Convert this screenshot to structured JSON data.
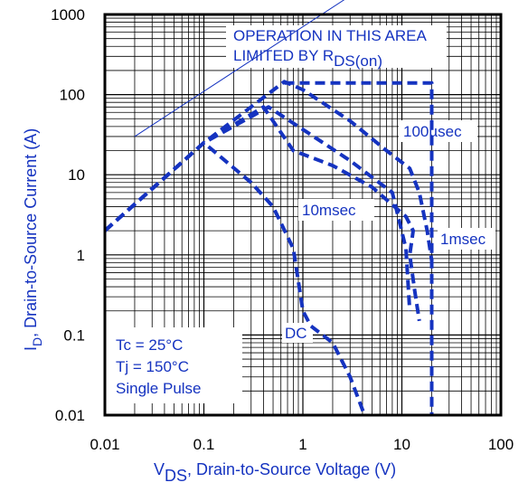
{
  "chart_data": {
    "type": "line",
    "xscale": "log",
    "yscale": "log",
    "xlim": [
      0.01,
      100
    ],
    "ylim": [
      0.01,
      1000
    ],
    "grid": true,
    "x_ticks": [
      "0.01",
      "0.1",
      "1",
      "10",
      "100"
    ],
    "y_ticks": [
      "0.01",
      "0.1",
      "1",
      "10",
      "100",
      "1000"
    ],
    "xlabel": {
      "main": "V",
      "sub": "DS",
      "rest": ", Drain-to-Source Voltage (V)"
    },
    "ylabel": {
      "main": "I",
      "sub": "D",
      "rest": ",  Drain-to-Source Current (A)"
    },
    "annotation": {
      "line1": "OPERATION IN THIS AREA",
      "line2_main": "LIMITED BY R",
      "line2_sub": "DS(on)"
    },
    "conditions": [
      "Tc = 25°C",
      "Tj = 150°C",
      "Single Pulse"
    ],
    "colors": {
      "curve": "#1533c0",
      "grid": "#000000",
      "text": "#1533c0"
    },
    "limit_line": [
      [
        0.02,
        30
      ],
      [
        0.08,
        150
      ]
    ],
    "series": [
      {
        "name": "100µsec",
        "points": [
          [
            0.01,
            2
          ],
          [
            0.1,
            25
          ],
          [
            0.65,
            145
          ],
          [
            1.0,
            115
          ],
          [
            3,
            47
          ],
          [
            7,
            20
          ],
          [
            12,
            12
          ],
          [
            15,
            6
          ],
          [
            18,
            2
          ],
          [
            20,
            0.85
          ]
        ]
      },
      {
        "name": "1msec",
        "points": [
          [
            0.01,
            2
          ],
          [
            0.1,
            25
          ],
          [
            0.4,
            70
          ],
          [
            0.8,
            20
          ],
          [
            2,
            13
          ],
          [
            5,
            7
          ],
          [
            11,
            3
          ],
          [
            13,
            2
          ],
          [
            12,
            1
          ],
          [
            13.5,
            0.35
          ],
          [
            15,
            0.15
          ]
        ]
      },
      {
        "name": "10msec",
        "points": [
          [
            0.01,
            2
          ],
          [
            0.1,
            25
          ],
          [
            0.45,
            70
          ],
          [
            1.1,
            34
          ],
          [
            3,
            15
          ],
          [
            8,
            6
          ],
          [
            11,
            1.2
          ],
          [
            12,
            0.2
          ]
        ]
      },
      {
        "name": "DC",
        "points": [
          [
            0.01,
            2
          ],
          [
            0.1,
            25
          ],
          [
            0.3,
            8
          ],
          [
            0.5,
            4
          ],
          [
            0.8,
            1.2
          ],
          [
            1.0,
            0.2
          ],
          [
            1.2,
            0.13
          ],
          [
            2,
            0.08
          ],
          [
            3,
            0.03
          ],
          [
            4.2,
            0.01
          ]
        ]
      },
      {
        "name": "",
        "points": [
          [
            0.65,
            140
          ],
          [
            20,
            140
          ],
          [
            20,
            0.01
          ]
        ]
      }
    ],
    "curve_labels": {
      "c100us": "100µsec",
      "c1ms": "1msec",
      "c10ms": "10msec",
      "cdc": "DC"
    }
  }
}
